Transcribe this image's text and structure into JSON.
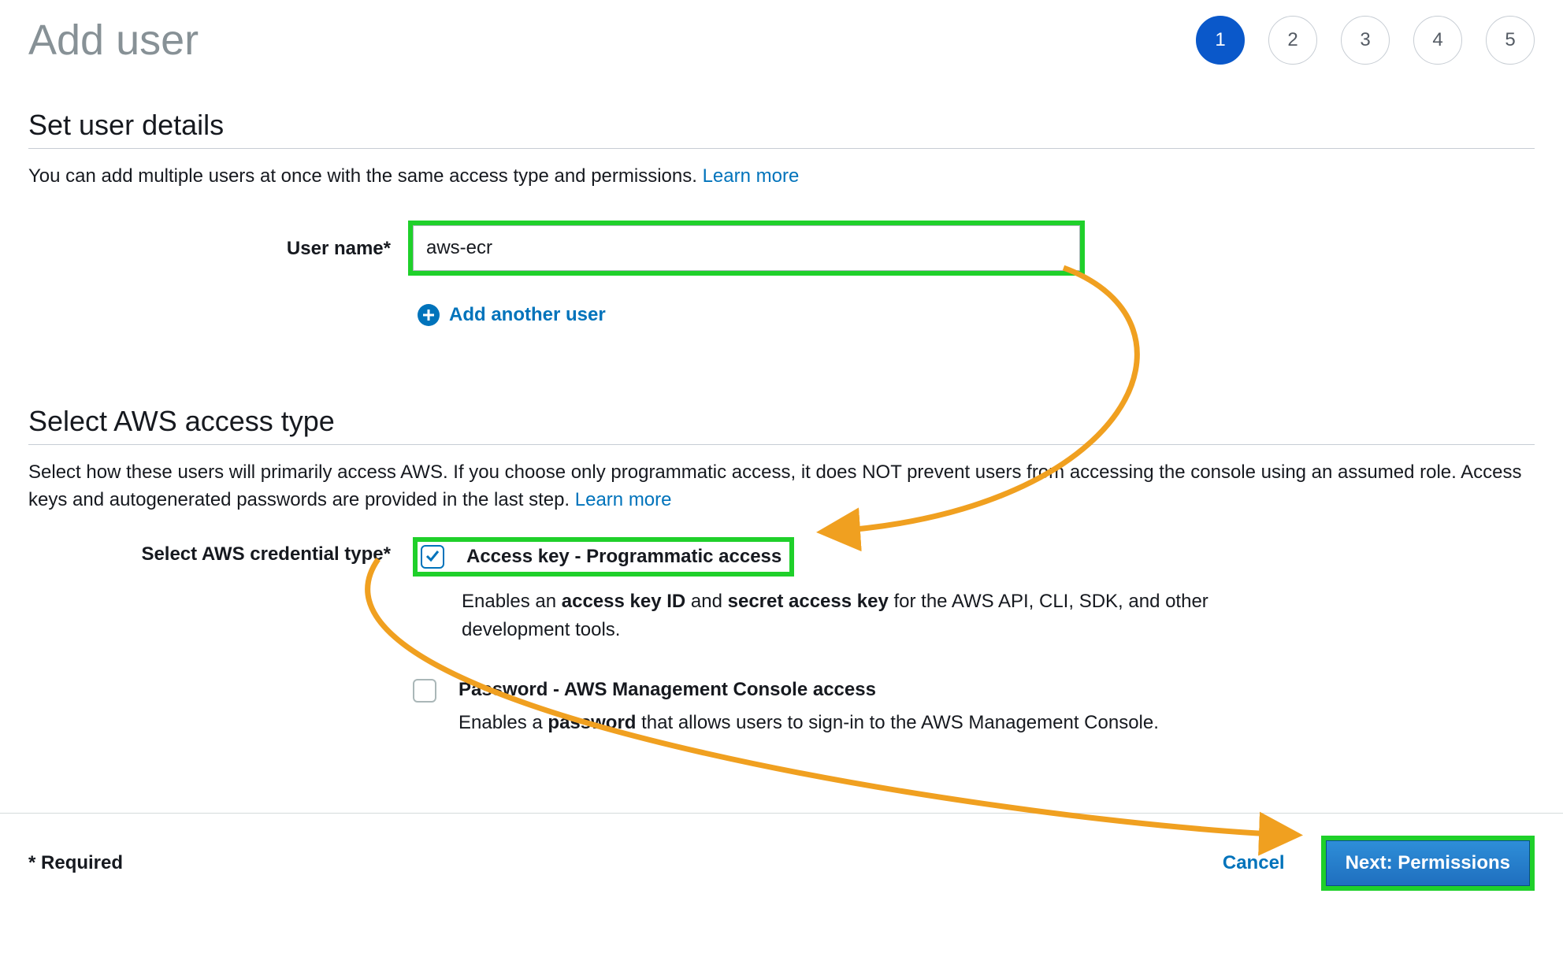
{
  "page_title": "Add user",
  "stepper": {
    "steps": [
      "1",
      "2",
      "3",
      "4",
      "5"
    ],
    "active_index": 0
  },
  "details": {
    "heading": "Set user details",
    "subtitle_pre": "You can add multiple users at once with the same access type and permissions. ",
    "learn_more": "Learn more",
    "username_label": "User name*",
    "username_value": "aws-ecr",
    "add_another_label": "Add another user"
  },
  "access": {
    "heading": "Select AWS access type",
    "subtitle_pre": "Select how these users will primarily access AWS. If you choose only programmatic access, it does NOT prevent users from accessing the console using an assumed role. Access keys and autogenerated passwords are provided in the last step. ",
    "learn_more": "Learn more",
    "cred_label": "Select AWS credential type*",
    "options": [
      {
        "title": "Access key - Programmatic access",
        "desc_pre": "Enables an ",
        "desc_b1": "access key ID",
        "desc_mid": " and ",
        "desc_b2": "secret access key",
        "desc_post": " for the AWS API, CLI, SDK, and other development tools.",
        "checked": true,
        "highlighted": true
      },
      {
        "title": "Password - AWS Management Console access",
        "desc_pre": "Enables a ",
        "desc_b1": "password",
        "desc_mid": "",
        "desc_b2": "",
        "desc_post": " that allows users to sign-in to the AWS Management Console.",
        "checked": false,
        "highlighted": false
      }
    ]
  },
  "footer": {
    "required": "* Required",
    "cancel": "Cancel",
    "next": "Next: Permissions"
  },
  "annotations": {
    "highlight_color": "#1fd02a",
    "arrow_color": "#f0a020"
  }
}
